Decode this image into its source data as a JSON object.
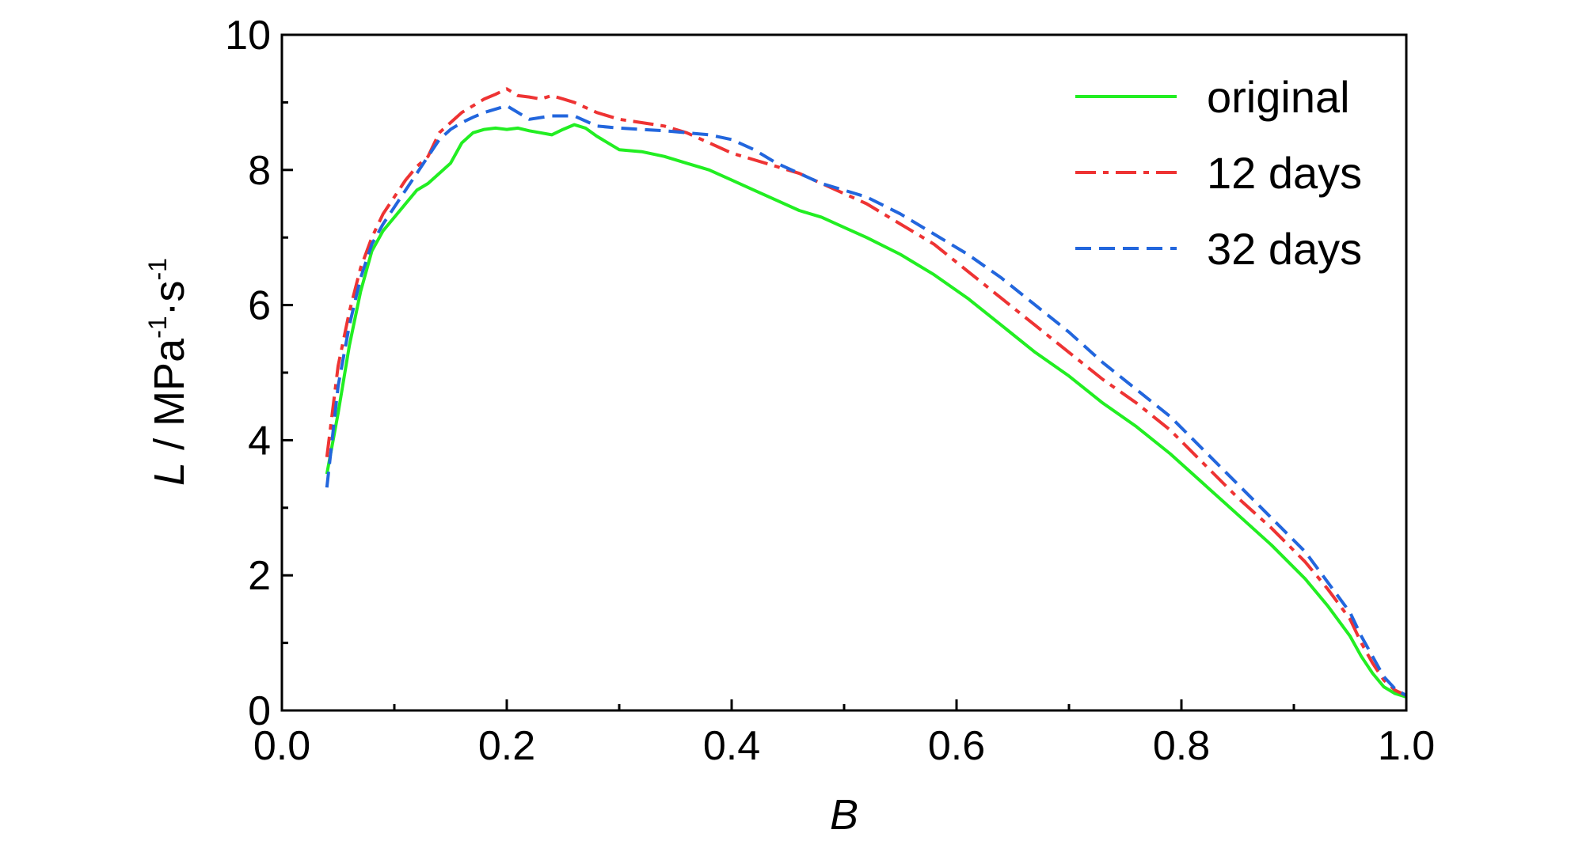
{
  "chart_data": {
    "type": "line",
    "xlabel": "B",
    "ylabel": {
      "var": "L",
      "unit_base": " / MPa",
      "exp1": "-1",
      "unit_mid": "·s",
      "exp2": "-1"
    },
    "xlim": [
      0.0,
      1.0
    ],
    "ylim": [
      0,
      10
    ],
    "xticks": [
      "0.0",
      "0.2",
      "0.4",
      "0.6",
      "0.8",
      "1.0"
    ],
    "yticks": [
      "0",
      "2",
      "4",
      "6",
      "8",
      "10"
    ],
    "legend_position": "top-right",
    "grid": false,
    "series": [
      {
        "name": "original",
        "color": "#22ee22",
        "style": "solid",
        "x": [
          0.04,
          0.05,
          0.06,
          0.07,
          0.08,
          0.09,
          0.1,
          0.11,
          0.12,
          0.13,
          0.14,
          0.15,
          0.16,
          0.17,
          0.18,
          0.19,
          0.2,
          0.21,
          0.22,
          0.23,
          0.24,
          0.25,
          0.26,
          0.27,
          0.28,
          0.3,
          0.32,
          0.34,
          0.36,
          0.38,
          0.4,
          0.42,
          0.44,
          0.46,
          0.48,
          0.5,
          0.52,
          0.55,
          0.58,
          0.61,
          0.64,
          0.67,
          0.7,
          0.73,
          0.76,
          0.79,
          0.82,
          0.85,
          0.88,
          0.91,
          0.93,
          0.95,
          0.96,
          0.97,
          0.98,
          0.99,
          1.0
        ],
        "y": [
          3.5,
          4.4,
          5.4,
          6.2,
          6.8,
          7.1,
          7.3,
          7.5,
          7.7,
          7.8,
          7.95,
          8.1,
          8.4,
          8.55,
          8.6,
          8.62,
          8.6,
          8.62,
          8.58,
          8.55,
          8.52,
          8.6,
          8.67,
          8.62,
          8.5,
          8.3,
          8.27,
          8.2,
          8.1,
          8.0,
          7.85,
          7.7,
          7.55,
          7.4,
          7.3,
          7.15,
          7.0,
          6.75,
          6.45,
          6.1,
          5.7,
          5.3,
          4.95,
          4.55,
          4.2,
          3.8,
          3.35,
          2.9,
          2.45,
          1.95,
          1.55,
          1.1,
          0.8,
          0.55,
          0.35,
          0.25,
          0.2
        ]
      },
      {
        "name": "12 days",
        "color": "#ee3333",
        "style": "dashdot",
        "x": [
          0.04,
          0.05,
          0.06,
          0.07,
          0.08,
          0.09,
          0.1,
          0.11,
          0.12,
          0.13,
          0.14,
          0.15,
          0.16,
          0.17,
          0.18,
          0.19,
          0.2,
          0.21,
          0.22,
          0.23,
          0.24,
          0.25,
          0.26,
          0.28,
          0.3,
          0.32,
          0.34,
          0.36,
          0.38,
          0.4,
          0.42,
          0.44,
          0.46,
          0.48,
          0.5,
          0.52,
          0.55,
          0.58,
          0.61,
          0.64,
          0.67,
          0.7,
          0.73,
          0.76,
          0.79,
          0.82,
          0.85,
          0.88,
          0.91,
          0.93,
          0.95,
          0.96,
          0.97,
          0.98,
          0.99,
          1.0
        ],
        "y": [
          3.75,
          5.1,
          5.9,
          6.55,
          7.0,
          7.35,
          7.6,
          7.85,
          8.05,
          8.2,
          8.55,
          8.7,
          8.85,
          8.95,
          9.05,
          9.12,
          9.2,
          9.1,
          9.08,
          9.05,
          9.1,
          9.05,
          9.0,
          8.85,
          8.75,
          8.7,
          8.65,
          8.55,
          8.4,
          8.25,
          8.15,
          8.05,
          7.95,
          7.8,
          7.65,
          7.5,
          7.2,
          6.9,
          6.5,
          6.1,
          5.7,
          5.3,
          4.9,
          4.55,
          4.15,
          3.65,
          3.15,
          2.7,
          2.2,
          1.8,
          1.35,
          1.0,
          0.7,
          0.45,
          0.3,
          0.22
        ]
      },
      {
        "name": "32 days",
        "color": "#2266dd",
        "style": "dashed",
        "x": [
          0.04,
          0.05,
          0.06,
          0.07,
          0.08,
          0.09,
          0.1,
          0.11,
          0.12,
          0.13,
          0.14,
          0.15,
          0.16,
          0.17,
          0.18,
          0.19,
          0.2,
          0.22,
          0.24,
          0.26,
          0.28,
          0.3,
          0.32,
          0.34,
          0.36,
          0.38,
          0.4,
          0.42,
          0.44,
          0.46,
          0.48,
          0.5,
          0.52,
          0.55,
          0.58,
          0.61,
          0.64,
          0.67,
          0.7,
          0.73,
          0.76,
          0.79,
          0.82,
          0.85,
          0.88,
          0.91,
          0.93,
          0.95,
          0.96,
          0.97,
          0.98,
          0.99,
          1.0
        ],
        "y": [
          3.3,
          4.8,
          5.7,
          6.4,
          6.9,
          7.2,
          7.45,
          7.7,
          7.95,
          8.2,
          8.45,
          8.6,
          8.7,
          8.78,
          8.85,
          8.9,
          8.95,
          8.75,
          8.8,
          8.8,
          8.65,
          8.62,
          8.6,
          8.58,
          8.55,
          8.52,
          8.45,
          8.3,
          8.1,
          7.95,
          7.8,
          7.7,
          7.6,
          7.35,
          7.05,
          6.75,
          6.4,
          6.0,
          5.6,
          5.15,
          4.75,
          4.35,
          3.85,
          3.35,
          2.85,
          2.35,
          1.9,
          1.45,
          1.1,
          0.8,
          0.5,
          0.32,
          0.22
        ]
      }
    ]
  }
}
